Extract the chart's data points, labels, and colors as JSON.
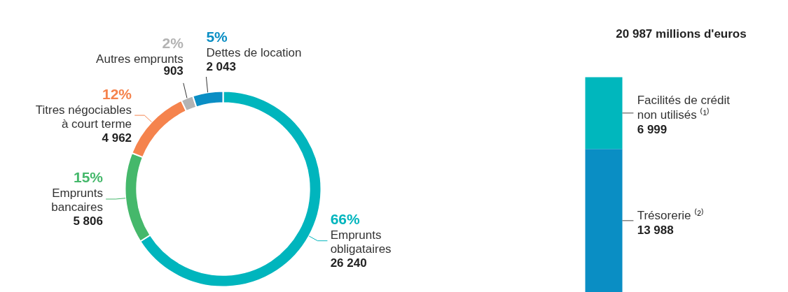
{
  "chart_data": [
    {
      "type": "donut",
      "categories": [
        "Emprunts\nobligataires",
        "Emprunts\nbancaires",
        "Titres négociables\nà court terme",
        "Autres emprunts",
        "Dettes de location"
      ],
      "values": [
        66,
        15,
        12,
        2,
        5
      ],
      "colors": [
        "#00b5bd",
        "#45b86b",
        "#f5834d",
        "#b3b3b3",
        "#0a8ec4"
      ],
      "value_labels": [
        "66%",
        "15%",
        "12%",
        "2%",
        "5%"
      ],
      "annotations": [
        "26 240",
        "5 806",
        "4 962",
        "903",
        "2 043"
      ]
    },
    {
      "type": "bar",
      "title": "20 987 millions d'euros",
      "stacked": true,
      "categories": [
        null
      ],
      "series": [
        {
          "name": "Trésorerie ⁽²⁾",
          "color": "#0a8ec4",
          "values": [
            13988
          ],
          "value_labels": [
            "13 988"
          ]
        },
        {
          "name": "Facilités de crédit\nnon utilisés ⁽¹⁾",
          "color": "#00b7bd",
          "values": [
            6999
          ],
          "value_labels": [
            "6 999"
          ]
        }
      ]
    }
  ]
}
